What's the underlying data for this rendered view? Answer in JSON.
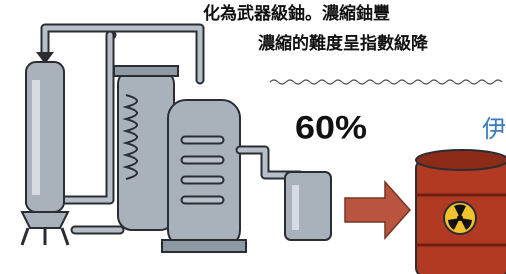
{
  "texts": {
    "line1": "化為武器級鈾。濃縮鈾豐",
    "line2": "濃縮的難度呈指數級降",
    "percent": "60%",
    "label": "伊"
  }
}
